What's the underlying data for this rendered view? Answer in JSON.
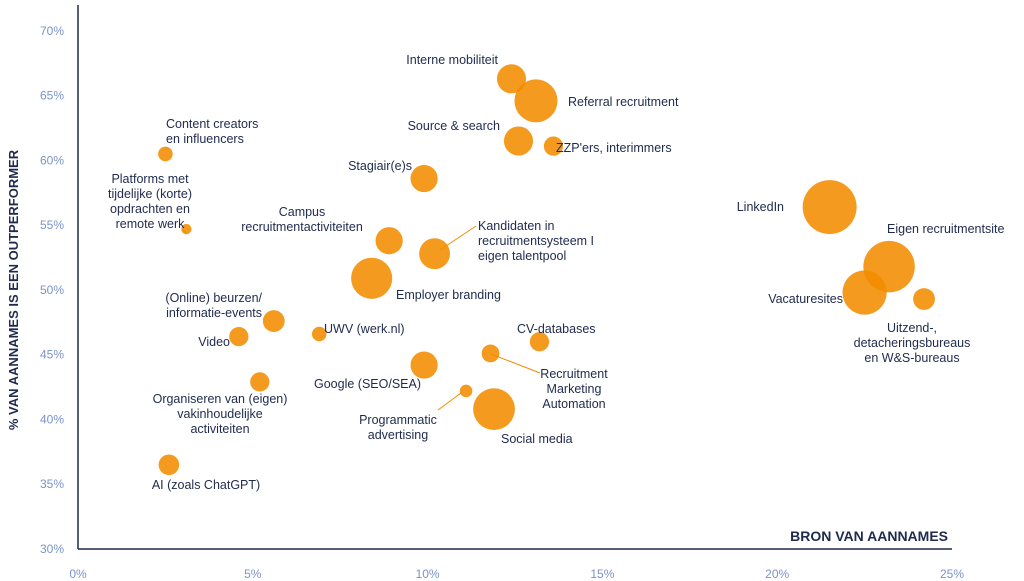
{
  "chart_data": {
    "type": "scatter",
    "xlabel": "BRON VAN AANNAMES",
    "ylabel": "% VAN AANNAMES IS EEN OUTPERFORMER",
    "xlim": [
      0,
      25
    ],
    "ylim": [
      30,
      72
    ],
    "x_ticks": [
      "0%",
      "5%",
      "10%",
      "15%",
      "20%",
      "25%"
    ],
    "x_tick_values": [
      0,
      5,
      10,
      15,
      20,
      25
    ],
    "y_ticks": [
      "30%",
      "35%",
      "40%",
      "45%",
      "50%",
      "55%",
      "60%",
      "65%",
      "70%"
    ],
    "y_tick_values": [
      30,
      35,
      40,
      45,
      50,
      55,
      60,
      65,
      70
    ],
    "grid": false,
    "point_color": "#f28c00",
    "label_color": "#1f2a4d",
    "axis_color": "#1f2a4d",
    "tick_color": "#7b93c8",
    "points": [
      {
        "label": [
          "Interne mobiliteit"
        ],
        "x": 12.4,
        "y": 66.3,
        "size": 1.6
      },
      {
        "label": [
          "Referral recruitment"
        ],
        "x": 13.1,
        "y": 64.6,
        "size": 3.5
      },
      {
        "label": [
          "Source & search"
        ],
        "x": 12.6,
        "y": 61.5,
        "size": 1.6
      },
      {
        "label": [
          "ZZP'ers, interimmers"
        ],
        "x": 13.6,
        "y": 61.1,
        "size": 0.7
      },
      {
        "label": [
          "Content creators",
          "en influencers"
        ],
        "x": 2.5,
        "y": 60.5,
        "size": 0.4
      },
      {
        "label": [
          "Stagiair(e)s"
        ],
        "x": 9.9,
        "y": 58.6,
        "size": 1.4
      },
      {
        "label": [
          "Platforms met",
          "tijdelijke (korte)",
          "opdrachten en",
          "remote werk"
        ],
        "x": 3.1,
        "y": 54.7,
        "size": 0.2
      },
      {
        "label": [
          "Campus",
          "recruitmentactiviteiten"
        ],
        "x": 8.9,
        "y": 53.8,
        "size": 1.4
      },
      {
        "label": [
          "Kandidaten in",
          "recruitmentsysteem I",
          "eigen talentpool"
        ],
        "x": 10.2,
        "y": 52.8,
        "size": 1.8
      },
      {
        "label": [
          "Employer branding"
        ],
        "x": 8.4,
        "y": 50.9,
        "size": 3.2
      },
      {
        "label": [
          "(Online) beurzen/",
          "informatie-events"
        ],
        "x": 5.6,
        "y": 47.6,
        "size": 0.9
      },
      {
        "label": [
          "UWV (werk.nl)"
        ],
        "x": 6.9,
        "y": 46.6,
        "size": 0.4
      },
      {
        "label": [
          "Video"
        ],
        "x": 4.6,
        "y": 46.4,
        "size": 0.7
      },
      {
        "label": [
          "CV-databases"
        ],
        "x": 13.2,
        "y": 46.0,
        "size": 0.7
      },
      {
        "label": [
          "Recruitment",
          "Marketing",
          "Automation"
        ],
        "x": 11.8,
        "y": 45.1,
        "size": 0.6
      },
      {
        "label": [
          "Google (SEO/SEA)"
        ],
        "x": 9.9,
        "y": 44.2,
        "size": 1.4
      },
      {
        "label": [
          "Organiseren van (eigen)",
          "vakinhoudelijke",
          "activiteiten"
        ],
        "x": 5.2,
        "y": 42.9,
        "size": 0.7
      },
      {
        "label": [
          "Programmatic",
          "advertising"
        ],
        "x": 11.1,
        "y": 42.2,
        "size": 0.3
      },
      {
        "label": [
          "Social media"
        ],
        "x": 11.9,
        "y": 40.8,
        "size": 3.3
      },
      {
        "label": [
          "AI (zoals ChatGPT)"
        ],
        "x": 2.6,
        "y": 36.5,
        "size": 0.8
      },
      {
        "label": [
          "LinkedIn"
        ],
        "x": 21.5,
        "y": 56.4,
        "size": 5.5
      },
      {
        "label": [
          "Eigen recruitmentsite"
        ],
        "x": 23.2,
        "y": 51.8,
        "size": 5.0
      },
      {
        "label": [
          "Vacaturesites"
        ],
        "x": 22.5,
        "y": 49.8,
        "size": 3.7
      },
      {
        "label": [
          "Uitzend-,",
          "detacheringsbureaus",
          "en W&S-bureaus"
        ],
        "x": 24.2,
        "y": 49.3,
        "size": 0.9
      }
    ]
  }
}
